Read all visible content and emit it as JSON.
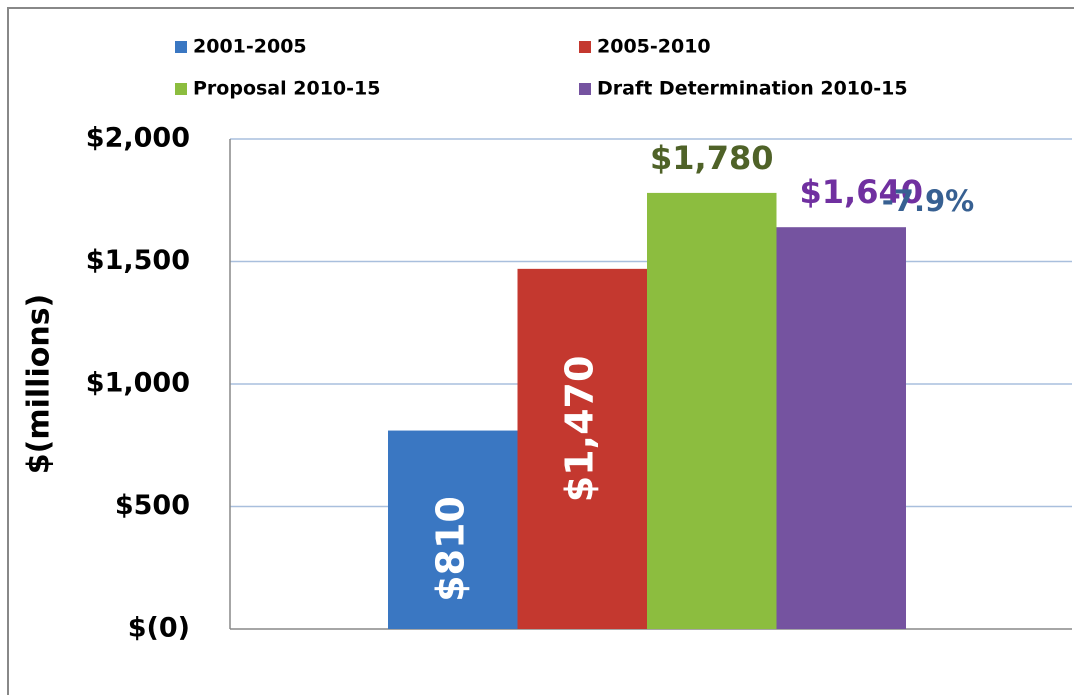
{
  "chart_data": {
    "type": "bar",
    "categories": [
      null
    ],
    "y_label": "$(millions)",
    "ylim": [
      0,
      2000
    ],
    "yticks": [
      {
        "value": 0,
        "label": "$(0)"
      },
      {
        "value": 500,
        "label": "$500"
      },
      {
        "value": 1000,
        "label": "$1,000"
      },
      {
        "value": 1500,
        "label": "$1,500"
      },
      {
        "value": 2000,
        "label": "$2,000"
      }
    ],
    "grid": true,
    "legend": "top",
    "series": [
      {
        "name": "2001-2005",
        "color": "#3a77c2",
        "values": [
          810
        ],
        "value_labels": [
          "$810"
        ]
      },
      {
        "name": "2005-2010",
        "color": "#c4382f",
        "values": [
          1470
        ],
        "value_labels": [
          "$1,470"
        ]
      },
      {
        "name": "Proposal 2010-15",
        "color": "#8cbd3f",
        "values": [
          1780
        ],
        "value_labels": [
          "$1,780"
        ]
      },
      {
        "name": "Draft Determination 2010-15",
        "color": "#7553a0",
        "values": [
          1640
        ],
        "value_labels": [
          "$1,640"
        ]
      }
    ],
    "annotations": [
      {
        "text": "-7.9%",
        "color": "#376092"
      }
    ]
  }
}
